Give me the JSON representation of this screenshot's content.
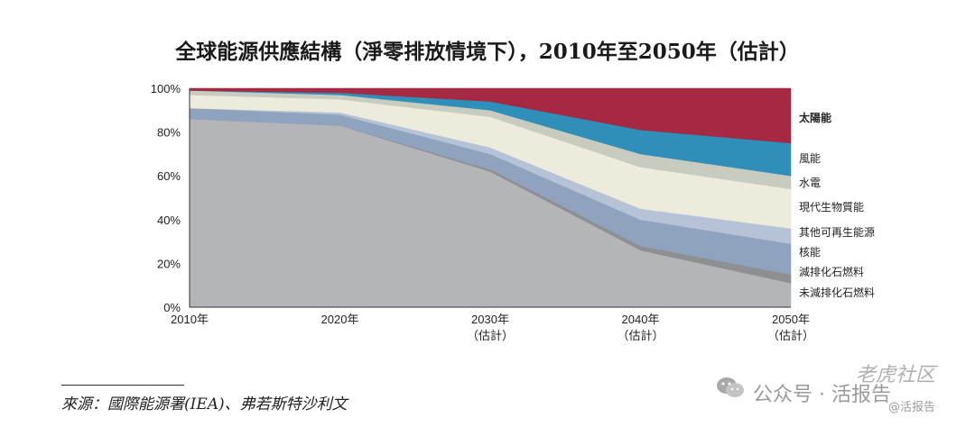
{
  "chart_data": {
    "type": "area",
    "stacked": true,
    "title": "全球能源供應結構（淨零排放情境下），2010年至2050年（估計）",
    "x": [
      "2010年",
      "2020年",
      "2030年",
      "2040年",
      "2050年"
    ],
    "x_sub": [
      "",
      "",
      "（估計）",
      "（估計）",
      "（估計）"
    ],
    "ylim": [
      0,
      100
    ],
    "y_ticks": [
      0,
      20,
      40,
      60,
      80,
      100
    ],
    "y_tick_labels": [
      "0%",
      "20%",
      "40%",
      "60%",
      "80%",
      "100%"
    ],
    "grid": false,
    "legend_position": "right",
    "series": [
      {
        "name": "未減排化石燃料",
        "color": "#b4b5b8",
        "values": [
          86,
          83,
          62,
          26,
          11
        ]
      },
      {
        "name": "減排化石燃料",
        "color": "#8e8f93",
        "values": [
          0,
          0,
          1,
          2,
          4
        ]
      },
      {
        "name": "核能",
        "color": "#8fa3bf",
        "values": [
          5,
          5,
          7,
          12,
          14
        ]
      },
      {
        "name": "其他可再生能源",
        "color": "#b6c3d6",
        "values": [
          0,
          1,
          3,
          5,
          7
        ]
      },
      {
        "name": "現代生物質能",
        "color": "#ecebdc",
        "values": [
          6,
          6,
          14,
          19,
          18
        ]
      },
      {
        "name": "水電",
        "color": "#c7ccbf",
        "values": [
          2,
          2,
          3,
          6,
          6
        ]
      },
      {
        "name": "風能",
        "color": "#2f8fb8",
        "values": [
          0,
          1,
          4,
          11,
          15
        ]
      },
      {
        "name": "太陽能",
        "color": "#a52942",
        "values": [
          1,
          2,
          6,
          19,
          25
        ]
      }
    ]
  },
  "source_text": "來源：國際能源署(IEA)、弗若斯特沙利文",
  "watermark": {
    "main": "公众号 · 活报告",
    "top": "老虎社区",
    "tag": "@活报告"
  }
}
